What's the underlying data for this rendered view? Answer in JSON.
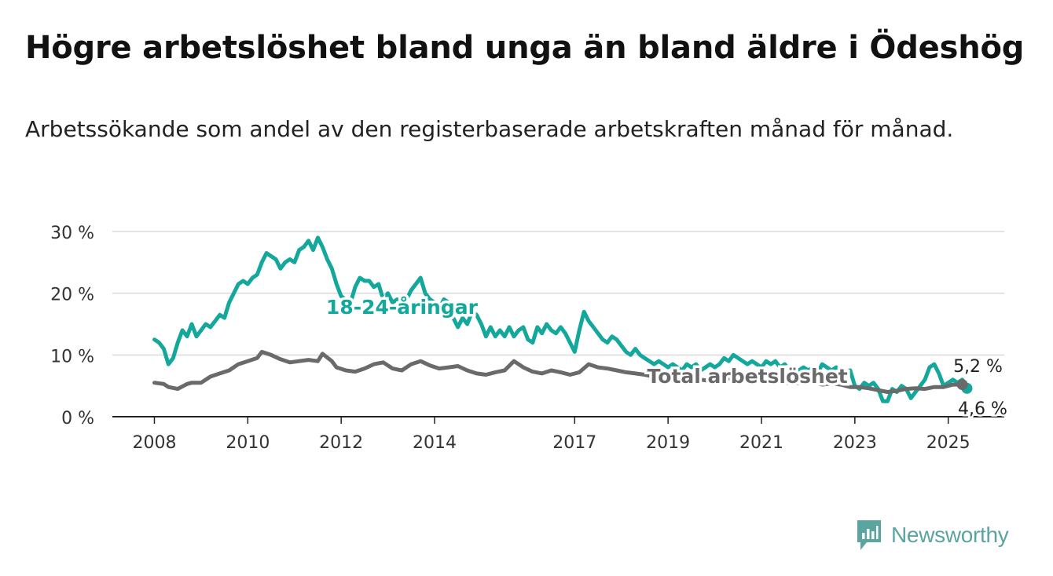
{
  "title": "Högre arbetslöshet bland unga än bland äldre i Ödeshög",
  "subtitle": "Arbetssökande som andel av den registerbaserade arbetskraften månad för månad.",
  "brand": {
    "name": "Newsworthy",
    "icon": "newsworthy-logo-icon",
    "color": "#5aa59f"
  },
  "chart_data": {
    "type": "line",
    "title": "Högre arbetslöshet bland unga än bland äldre i Ödeshög",
    "subtitle": "Arbetssökande som andel av den registerbaserade arbetskraften månad för månad.",
    "xlabel": "",
    "ylabel": "",
    "x_tick_labels": [
      "2008",
      "2010",
      "2012",
      "2014",
      "2017",
      "2019",
      "2021",
      "2023",
      "2025"
    ],
    "x_tick_values": [
      2008,
      2010,
      2012,
      2014,
      2017,
      2019,
      2021,
      2023,
      2025
    ],
    "y_tick_labels": [
      "0 %",
      "10 %",
      "20 %",
      "30 %"
    ],
    "y_tick_values": [
      0,
      10,
      20,
      30
    ],
    "ylim": [
      0,
      30
    ],
    "xlim": [
      2007.1,
      2026.2
    ],
    "grid": true,
    "series": [
      {
        "name": "18-24-åringar",
        "color": "#13a89b",
        "end_label": "4,6 %",
        "points": [
          [
            2008.0,
            12.5
          ],
          [
            2008.1,
            12.0
          ],
          [
            2008.2,
            11.0
          ],
          [
            2008.3,
            8.5
          ],
          [
            2008.4,
            9.5
          ],
          [
            2008.5,
            12.0
          ],
          [
            2008.6,
            14.0
          ],
          [
            2008.7,
            13.0
          ],
          [
            2008.8,
            15.0
          ],
          [
            2008.9,
            13.0
          ],
          [
            2009.0,
            14.0
          ],
          [
            2009.1,
            15.0
          ],
          [
            2009.2,
            14.5
          ],
          [
            2009.3,
            15.5
          ],
          [
            2009.4,
            16.5
          ],
          [
            2009.5,
            16.0
          ],
          [
            2009.6,
            18.5
          ],
          [
            2009.7,
            20.0
          ],
          [
            2009.8,
            21.5
          ],
          [
            2009.9,
            22.0
          ],
          [
            2010.0,
            21.5
          ],
          [
            2010.1,
            22.5
          ],
          [
            2010.2,
            23.0
          ],
          [
            2010.3,
            25.0
          ],
          [
            2010.4,
            26.5
          ],
          [
            2010.5,
            26.0
          ],
          [
            2010.6,
            25.5
          ],
          [
            2010.7,
            24.0
          ],
          [
            2010.8,
            25.0
          ],
          [
            2010.9,
            25.5
          ],
          [
            2011.0,
            25.0
          ],
          [
            2011.1,
            27.0
          ],
          [
            2011.2,
            27.5
          ],
          [
            2011.3,
            28.5
          ],
          [
            2011.4,
            27.0
          ],
          [
            2011.5,
            29.0
          ],
          [
            2011.6,
            27.5
          ],
          [
            2011.7,
            25.5
          ],
          [
            2011.8,
            24.0
          ],
          [
            2011.9,
            21.5
          ],
          [
            2012.0,
            19.5
          ],
          [
            2012.1,
            19.0
          ],
          [
            2012.2,
            18.5
          ],
          [
            2012.3,
            21.0
          ],
          [
            2012.4,
            22.5
          ],
          [
            2012.5,
            22.0
          ],
          [
            2012.6,
            22.0
          ],
          [
            2012.7,
            21.0
          ],
          [
            2012.8,
            21.5
          ],
          [
            2012.9,
            19.0
          ],
          [
            2013.0,
            20.0
          ],
          [
            2013.1,
            18.5
          ],
          [
            2013.2,
            19.0
          ],
          [
            2013.3,
            18.5
          ],
          [
            2013.4,
            19.0
          ],
          [
            2013.5,
            20.5
          ],
          [
            2013.6,
            21.5
          ],
          [
            2013.7,
            22.5
          ],
          [
            2013.8,
            20.0
          ],
          [
            2013.9,
            19.0
          ],
          [
            2014.0,
            18.5
          ],
          [
            2014.1,
            17.5
          ],
          [
            2014.2,
            19.0
          ],
          [
            2014.3,
            18.5
          ],
          [
            2014.4,
            16.0
          ],
          [
            2014.5,
            14.5
          ],
          [
            2014.6,
            16.0
          ],
          [
            2014.7,
            15.0
          ],
          [
            2014.8,
            17.0
          ],
          [
            2014.9,
            16.5
          ],
          [
            2015.0,
            15.0
          ],
          [
            2015.1,
            13.0
          ],
          [
            2015.2,
            14.5
          ],
          [
            2015.3,
            13.0
          ],
          [
            2015.4,
            14.0
          ],
          [
            2015.5,
            13.0
          ],
          [
            2015.6,
            14.5
          ],
          [
            2015.7,
            13.0
          ],
          [
            2015.8,
            14.0
          ],
          [
            2015.9,
            14.5
          ],
          [
            2016.0,
            12.5
          ],
          [
            2016.1,
            12.0
          ],
          [
            2016.2,
            14.5
          ],
          [
            2016.3,
            13.5
          ],
          [
            2016.4,
            15.0
          ],
          [
            2016.5,
            14.0
          ],
          [
            2016.6,
            13.5
          ],
          [
            2016.7,
            14.5
          ],
          [
            2016.8,
            13.5
          ],
          [
            2016.9,
            12.0
          ],
          [
            2017.0,
            10.5
          ],
          [
            2017.1,
            14.0
          ],
          [
            2017.2,
            17.0
          ],
          [
            2017.3,
            15.5
          ],
          [
            2017.4,
            14.5
          ],
          [
            2017.5,
            13.5
          ],
          [
            2017.6,
            12.5
          ],
          [
            2017.7,
            12.0
          ],
          [
            2017.8,
            13.0
          ],
          [
            2017.9,
            12.5
          ],
          [
            2018.0,
            11.5
          ],
          [
            2018.1,
            10.5
          ],
          [
            2018.2,
            10.0
          ],
          [
            2018.3,
            11.0
          ],
          [
            2018.4,
            10.0
          ],
          [
            2018.5,
            9.5
          ],
          [
            2018.6,
            9.0
          ],
          [
            2018.7,
            8.5
          ],
          [
            2018.8,
            9.0
          ],
          [
            2018.9,
            8.5
          ],
          [
            2019.0,
            8.0
          ],
          [
            2019.1,
            8.5
          ],
          [
            2019.2,
            8.0
          ],
          [
            2019.3,
            7.5
          ],
          [
            2019.4,
            8.5
          ],
          [
            2019.5,
            8.0
          ],
          [
            2019.6,
            8.5
          ],
          [
            2019.7,
            7.5
          ],
          [
            2019.8,
            8.0
          ],
          [
            2019.9,
            8.5
          ],
          [
            2020.0,
            8.0
          ],
          [
            2020.1,
            8.5
          ],
          [
            2020.2,
            9.5
          ],
          [
            2020.3,
            9.0
          ],
          [
            2020.4,
            10.0
          ],
          [
            2020.5,
            9.5
          ],
          [
            2020.6,
            9.0
          ],
          [
            2020.7,
            8.5
          ],
          [
            2020.8,
            9.0
          ],
          [
            2020.9,
            8.5
          ],
          [
            2021.0,
            8.0
          ],
          [
            2021.1,
            9.0
          ],
          [
            2021.2,
            8.5
          ],
          [
            2021.3,
            9.0
          ],
          [
            2021.4,
            8.0
          ],
          [
            2021.5,
            8.5
          ],
          [
            2021.6,
            7.5
          ],
          [
            2021.7,
            8.0
          ],
          [
            2021.8,
            7.5
          ],
          [
            2021.9,
            8.0
          ],
          [
            2022.0,
            7.5
          ],
          [
            2022.1,
            8.0
          ],
          [
            2022.2,
            7.0
          ],
          [
            2022.3,
            8.5
          ],
          [
            2022.4,
            8.0
          ],
          [
            2022.5,
            7.5
          ],
          [
            2022.6,
            8.0
          ],
          [
            2022.7,
            7.5
          ],
          [
            2022.8,
            7.0
          ],
          [
            2022.9,
            7.5
          ],
          [
            2023.0,
            5.0
          ],
          [
            2023.1,
            4.5
          ],
          [
            2023.2,
            5.5
          ],
          [
            2023.3,
            5.0
          ],
          [
            2023.4,
            5.5
          ],
          [
            2023.5,
            4.5
          ],
          [
            2023.6,
            2.5
          ],
          [
            2023.7,
            2.5
          ],
          [
            2023.8,
            4.5
          ],
          [
            2023.9,
            4.0
          ],
          [
            2024.0,
            5.0
          ],
          [
            2024.1,
            4.5
          ],
          [
            2024.2,
            3.0
          ],
          [
            2024.3,
            4.0
          ],
          [
            2024.4,
            5.0
          ],
          [
            2024.5,
            6.0
          ],
          [
            2024.6,
            8.0
          ],
          [
            2024.7,
            8.5
          ],
          [
            2024.8,
            7.0
          ],
          [
            2024.9,
            5.0
          ],
          [
            2025.0,
            5.5
          ],
          [
            2025.1,
            6.0
          ],
          [
            2025.2,
            5.5
          ],
          [
            2025.3,
            6.0
          ],
          [
            2025.4,
            4.6
          ]
        ]
      },
      {
        "name": "Total arbetslöshet",
        "color": "#6a6a6a",
        "end_label": "5,2 %",
        "points": [
          [
            2008.0,
            5.5
          ],
          [
            2008.2,
            5.3
          ],
          [
            2008.3,
            4.8
          ],
          [
            2008.5,
            4.5
          ],
          [
            2008.7,
            5.3
          ],
          [
            2008.8,
            5.5
          ],
          [
            2009.0,
            5.5
          ],
          [
            2009.2,
            6.5
          ],
          [
            2009.4,
            7.0
          ],
          [
            2009.6,
            7.5
          ],
          [
            2009.8,
            8.5
          ],
          [
            2010.0,
            9.0
          ],
          [
            2010.2,
            9.5
          ],
          [
            2010.3,
            10.5
          ],
          [
            2010.5,
            10.0
          ],
          [
            2010.7,
            9.3
          ],
          [
            2010.9,
            8.8
          ],
          [
            2011.1,
            9.0
          ],
          [
            2011.3,
            9.2
          ],
          [
            2011.5,
            9.0
          ],
          [
            2011.6,
            10.2
          ],
          [
            2011.8,
            9.0
          ],
          [
            2011.9,
            8.0
          ],
          [
            2012.1,
            7.5
          ],
          [
            2012.3,
            7.3
          ],
          [
            2012.5,
            7.8
          ],
          [
            2012.7,
            8.5
          ],
          [
            2012.9,
            8.8
          ],
          [
            2013.1,
            7.8
          ],
          [
            2013.3,
            7.5
          ],
          [
            2013.5,
            8.5
          ],
          [
            2013.7,
            9.0
          ],
          [
            2013.9,
            8.3
          ],
          [
            2014.1,
            7.8
          ],
          [
            2014.3,
            8.0
          ],
          [
            2014.5,
            8.2
          ],
          [
            2014.7,
            7.5
          ],
          [
            2014.9,
            7.0
          ],
          [
            2015.1,
            6.8
          ],
          [
            2015.3,
            7.2
          ],
          [
            2015.5,
            7.5
          ],
          [
            2015.7,
            9.0
          ],
          [
            2015.9,
            8.0
          ],
          [
            2016.1,
            7.3
          ],
          [
            2016.3,
            7.0
          ],
          [
            2016.5,
            7.5
          ],
          [
            2016.7,
            7.2
          ],
          [
            2016.9,
            6.8
          ],
          [
            2017.1,
            7.2
          ],
          [
            2017.3,
            8.5
          ],
          [
            2017.5,
            8.0
          ],
          [
            2017.7,
            7.8
          ],
          [
            2017.9,
            7.5
          ],
          [
            2018.1,
            7.2
          ],
          [
            2018.3,
            7.0
          ],
          [
            2018.5,
            6.8
          ],
          [
            2018.7,
            6.5
          ],
          [
            2018.9,
            6.5
          ],
          [
            2019.1,
            6.3
          ],
          [
            2019.3,
            6.2
          ],
          [
            2019.5,
            6.0
          ],
          [
            2019.7,
            6.0
          ],
          [
            2019.9,
            5.8
          ],
          [
            2020.1,
            6.0
          ],
          [
            2020.3,
            6.2
          ],
          [
            2020.5,
            6.0
          ],
          [
            2020.7,
            5.8
          ],
          [
            2020.9,
            5.8
          ],
          [
            2021.1,
            5.6
          ],
          [
            2021.3,
            5.5
          ],
          [
            2021.5,
            5.5
          ],
          [
            2021.7,
            5.4
          ],
          [
            2021.9,
            5.5
          ],
          [
            2022.1,
            5.5
          ],
          [
            2022.3,
            5.2
          ],
          [
            2022.5,
            5.4
          ],
          [
            2022.7,
            5.2
          ],
          [
            2022.9,
            4.8
          ],
          [
            2023.1,
            4.8
          ],
          [
            2023.3,
            4.6
          ],
          [
            2023.5,
            4.3
          ],
          [
            2023.7,
            4.0
          ],
          [
            2023.9,
            4.2
          ],
          [
            2024.1,
            4.5
          ],
          [
            2024.3,
            4.6
          ],
          [
            2024.5,
            4.5
          ],
          [
            2024.7,
            4.8
          ],
          [
            2024.9,
            4.8
          ],
          [
            2025.1,
            5.2
          ],
          [
            2025.3,
            5.2
          ]
        ]
      }
    ],
    "annotations": [
      {
        "text": "18-24-åringar",
        "series": "18-24-åringar",
        "x": 2013.3,
        "y": 17.8
      },
      {
        "text": "Total arbetslöshet",
        "series": "Total arbetslöshet",
        "x": 2020.7,
        "y": 6.6
      }
    ]
  }
}
